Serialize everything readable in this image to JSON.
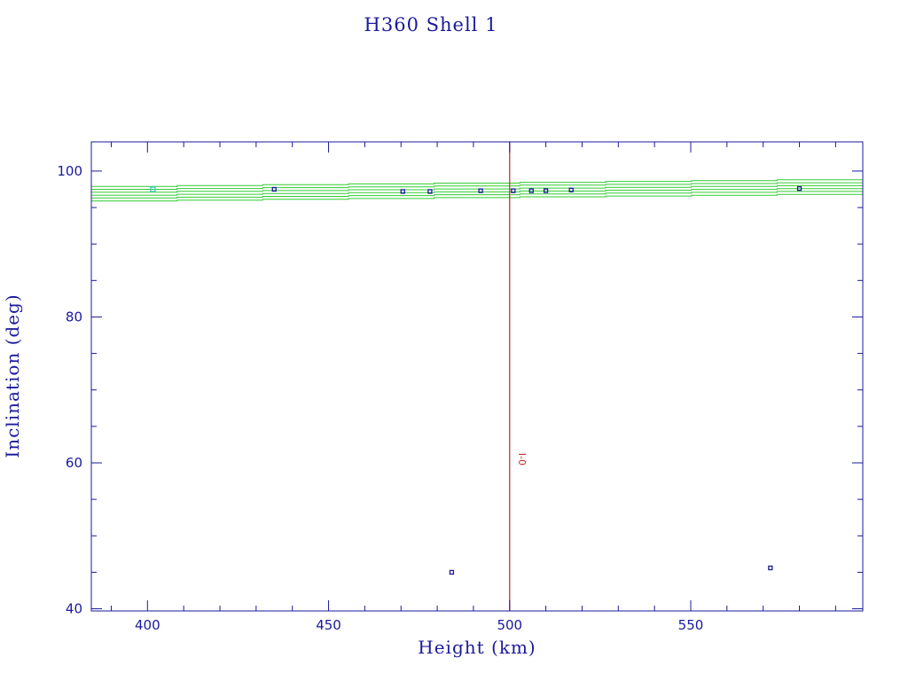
{
  "chart_data": {
    "type": "scatter",
    "title": "H360 Shell 1",
    "xlabel": "Height (km)",
    "ylabel": "Inclination (deg)",
    "xlim": [
      384.5,
      597.5
    ],
    "ylim": [
      39.7,
      104
    ],
    "x_ticks": [
      {
        "value": 400,
        "label": "400"
      },
      {
        "value": 450,
        "label": "450"
      },
      {
        "value": 500,
        "label": "500"
      },
      {
        "value": 550,
        "label": "550"
      }
    ],
    "y_ticks": [
      {
        "value": 40,
        "label": "40"
      },
      {
        "value": 60,
        "label": "60"
      },
      {
        "value": 80,
        "label": "80"
      },
      {
        "value": 100,
        "label": "100"
      }
    ],
    "x_minor_step": 10,
    "y_minor_step": 5,
    "grid": false,
    "colors": {
      "axes": "#1a1a9c",
      "points": "#1a1a9c",
      "highlight_point": "#39c8c8",
      "bands": "#33cc33",
      "marker_line": "#cc2222"
    },
    "sun_sync_bands": [
      {
        "start_y": 95.9,
        "end_y": 96.8
      },
      {
        "start_y": 96.3,
        "end_y": 97.2
      },
      {
        "start_y": 96.7,
        "end_y": 97.6
      },
      {
        "start_y": 97.1,
        "end_y": 98.0
      },
      {
        "start_y": 97.5,
        "end_y": 98.4
      },
      {
        "start_y": 97.9,
        "end_y": 98.8
      }
    ],
    "vertical_marker": {
      "x": 500,
      "label": "I-0",
      "label_y": 60.5
    },
    "points": [
      {
        "x": 401.5,
        "y": 97.5,
        "highlight": true
      },
      {
        "x": 435,
        "y": 97.5
      },
      {
        "x": 470.5,
        "y": 97.2
      },
      {
        "x": 478,
        "y": 97.2
      },
      {
        "x": 492,
        "y": 97.3
      },
      {
        "x": 501,
        "y": 97.3
      },
      {
        "x": 506,
        "y": 97.3
      },
      {
        "x": 510,
        "y": 97.3
      },
      {
        "x": 517,
        "y": 97.4
      },
      {
        "x": 580,
        "y": 97.6
      },
      {
        "x": 484,
        "y": 45.0
      },
      {
        "x": 572,
        "y": 45.6
      }
    ]
  }
}
